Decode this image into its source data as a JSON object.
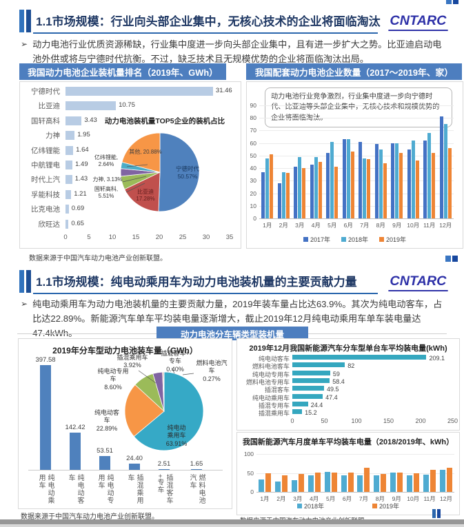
{
  "logo_text": "CNTARC",
  "bullet_marker": "➢",
  "colors": {
    "accent_blue": "#2a66ad",
    "panel_header": "#4d7ebf",
    "navy_title": "#1f3864",
    "logo_blue": "#2e31a8",
    "light_bar": "#b8cce4",
    "teal_bar": "#35a7bf",
    "deco_light": "#3a76c2",
    "deco_dark": "#17479e"
  },
  "slide1": {
    "title": "1.1市场规模：行业向头部企业集中，无核心技术的企业将面临淘汰",
    "bullet": "动力电池行业优质资源稀缺，行业集中度进一步向头部企业集中，且有进一步扩大之势。比亚迪启动电池外供或将与宁德时代抗衡。不过，缺乏技术且无规模优势的企业将面临淘汰出局。",
    "source": "数据来源于中国汽车动力电池产业创新联盟。"
  },
  "slide2": {
    "title": "1.1市场规模：纯电动乘用车为动力电池装机量的主要贡献力量",
    "bullet": "纯电动乘用车为动力电池装机量的主要贡献力量，2019年装车量占比达63.9%。其次为纯电动客车，占比达22.89%。新能源汽车单车平均装电量逐渐增大，截止2019年12月纯电动乘用车单车装电量达47.4kWh。",
    "banner": "动力电池分车辆类型装机量",
    "source_left": "数据来源于中国汽车动力电池产业创新联盟。",
    "source_right": "数据来源于中国汽车动力电池产业创新联盟。"
  },
  "chart_data": [
    {
      "id": "rank_2019",
      "type": "bar",
      "orientation": "horizontal",
      "title": "我国动力电池企业装机量排名（2019年、GWh）",
      "categories": [
        "宁德时代",
        "比亚迪",
        "国轩高科",
        "力神",
        "亿纬锂能",
        "中航锂电",
        "时代上汽",
        "孚能科技",
        "比克电池",
        "欣旺达"
      ],
      "values": [
        31.46,
        10.75,
        3.43,
        1.95,
        1.64,
        1.49,
        1.43,
        1.21,
        0.69,
        0.65
      ],
      "xlim": [
        0,
        35
      ],
      "xticks": [
        0,
        5,
        10,
        15,
        20,
        25,
        30,
        35
      ],
      "bar_color": "#b8cce4"
    },
    {
      "id": "top5_pie",
      "type": "pie",
      "title": "动力电池装机量TOP5企业的装机占比",
      "labels": [
        "宁德时代",
        "比亚迪",
        "国轩高科",
        "力神",
        "亿纬锂能",
        "其他"
      ],
      "values": [
        50.57,
        17.28,
        5.51,
        3.13,
        2.64,
        20.88
      ],
      "colors": [
        "#4f81bd",
        "#c0504d",
        "#9bbb59",
        "#8064a2",
        "#4bacc6",
        "#f79646"
      ]
    },
    {
      "id": "company_count",
      "type": "bar-grouped",
      "title": "我国配套动力电池企业数量（2017～2019年、家）",
      "note": "动力电池行业竞争激烈，行业集中度进一步向宁德时代、比亚迪等头部企业集中，无核心技术和规模优势的企业将面临淘汰。",
      "categories": [
        "1月",
        "2月",
        "3月",
        "4月",
        "5月",
        "6月",
        "7月",
        "8月",
        "9月",
        "10月",
        "11月",
        "12月"
      ],
      "series": [
        {
          "name": "2017年",
          "color": "#4472c4",
          "values": [
            37,
            28,
            41,
            43,
            52,
            63,
            61,
            59,
            60,
            55,
            62,
            81
          ]
        },
        {
          "name": "2018年",
          "color": "#4fabd1",
          "values": [
            48,
            37,
            49,
            49,
            61,
            63,
            48,
            55,
            60,
            62,
            68,
            75
          ]
        },
        {
          "name": "2019年",
          "color": "#ee8535",
          "values": [
            51,
            36,
            40,
            45,
            41,
            53,
            47,
            44,
            52,
            46,
            52,
            56
          ]
        }
      ],
      "ylim": [
        0,
        90
      ],
      "ytick_step": 10,
      "legend_position": "bottom"
    },
    {
      "id": "by_vehicle_2019",
      "type": "bar",
      "orientation": "vertical",
      "title": "2019年分车型动力电池装车量（GWh）",
      "categories": [
        "纯电动乘用车",
        "纯电动客车",
        "纯电动专用车",
        "插混乘用车",
        "插混客车+专车",
        "燃料电池汽车"
      ],
      "values": [
        397.58,
        142.42,
        53.51,
        24.4,
        2.51,
        1.65
      ],
      "bar_color": "#4f81bd"
    },
    {
      "id": "by_vehicle_pie",
      "type": "pie",
      "labels": [
        "纯电动乘用车",
        "纯电动客车",
        "纯电动专用车",
        "插混乘用车",
        "插混客车+专车",
        "燃料电池汽车"
      ],
      "values": [
        63.91,
        22.89,
        8.6,
        3.92,
        0.4,
        0.27
      ],
      "colors": [
        "#36a9c6",
        "#f79646",
        "#9bbb59",
        "#8064a2",
        "#d16349",
        "#4f81bd"
      ]
    },
    {
      "id": "avg_by_type",
      "type": "bar",
      "orientation": "horizontal",
      "title": "2019年12月我国新能源汽车分车型单台车平均装电量(kWh)",
      "categories": [
        "纯电动客车",
        "燃料电池客车",
        "纯电动专用车",
        "燃料电池专用车",
        "插混客车",
        "纯电动乘用车",
        "插混专用车",
        "插混乘用车"
      ],
      "values": [
        209.1,
        82,
        59,
        58.4,
        49.5,
        47.4,
        24.4,
        15.2
      ],
      "xlim": [
        0,
        250
      ],
      "xticks": [
        0,
        50,
        100,
        150,
        200,
        250
      ],
      "bar_color": "#35a7bf"
    },
    {
      "id": "monthly_avg",
      "type": "bar-grouped",
      "title": "我国新能源汽车月度单车平均装车电量（2018/2019年、kWh）",
      "categories": [
        "1月",
        "2月",
        "3月",
        "4月",
        "5月",
        "6月",
        "7月",
        "8月",
        "9月",
        "10月",
        "11月",
        "12月"
      ],
      "series": [
        {
          "name": "2018年",
          "color": "#4fabd1",
          "values": [
            33,
            28,
            31,
            43,
            52,
            43,
            43,
            43,
            51,
            44,
            46,
            59
          ]
        },
        {
          "name": "2019年",
          "color": "#ee8535",
          "values": [
            49,
            43,
            47,
            51,
            51,
            51,
            64,
            48,
            51,
            49,
            58,
            63
          ]
        }
      ],
      "ylim": [
        0,
        100
      ],
      "ytick_step": 50,
      "legend_position": "bottom"
    }
  ]
}
